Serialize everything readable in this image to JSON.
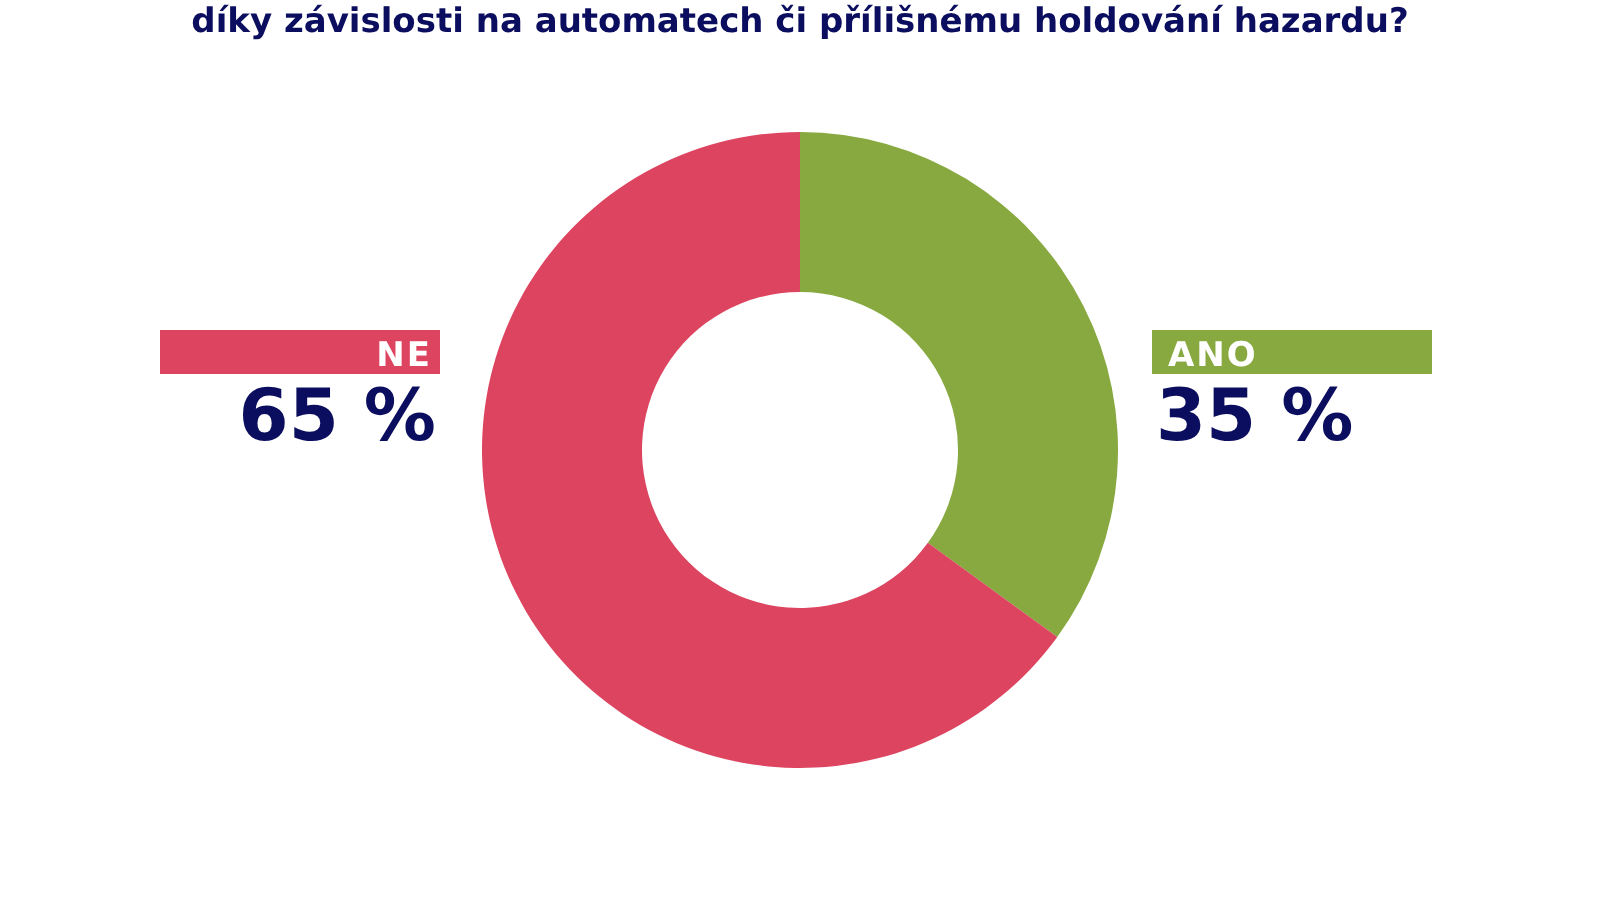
{
  "chart_data": {
    "type": "donut",
    "title": "díky závislosti na automatech či přílišnému holdování hazardu?",
    "categories": [
      "ANO",
      "NE"
    ],
    "values": [
      35,
      65
    ],
    "colors": [
      "#87a940",
      "#dd4460"
    ],
    "value_labels": [
      "35 %",
      "65 %"
    ]
  }
}
